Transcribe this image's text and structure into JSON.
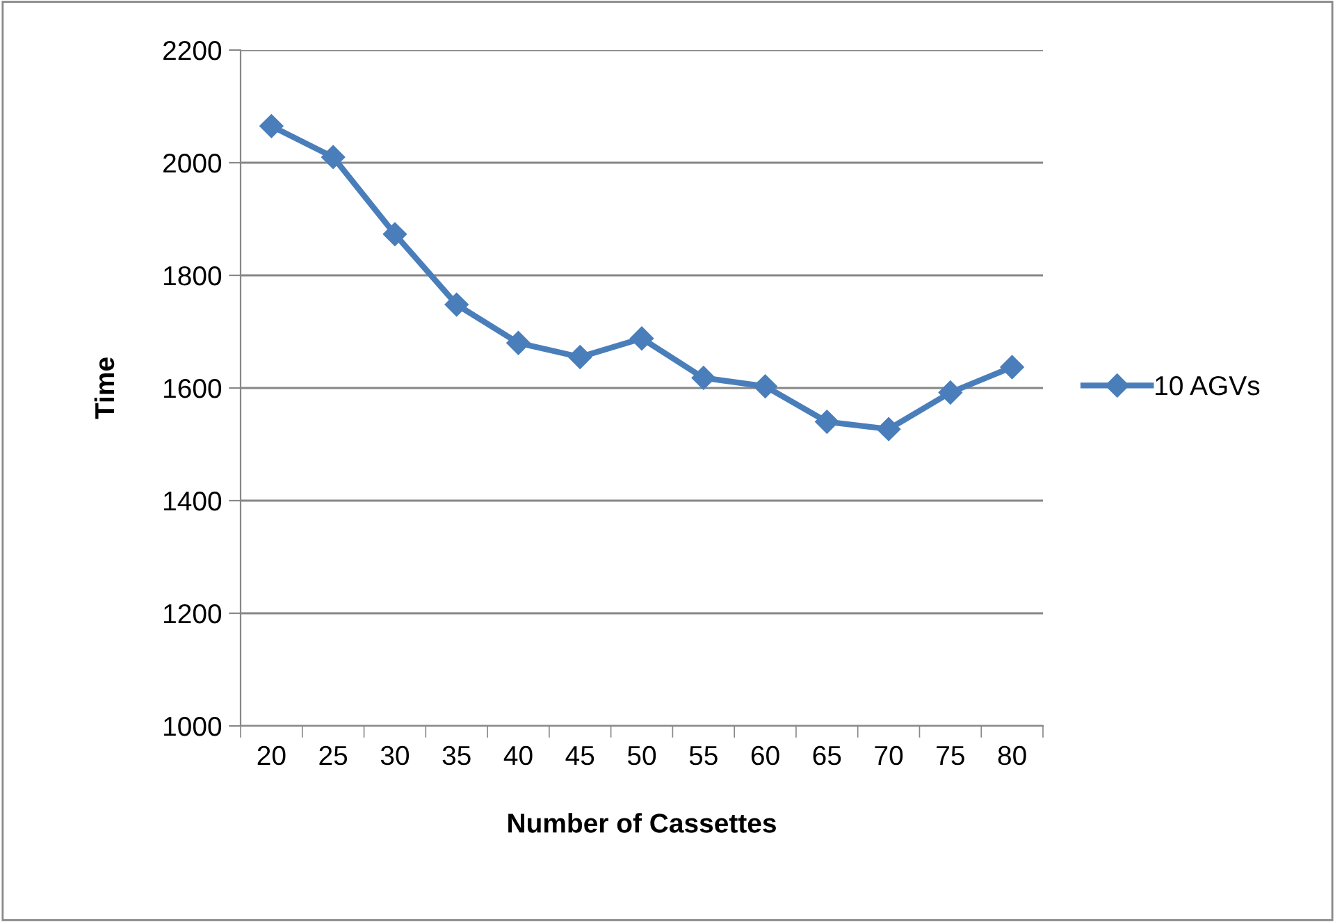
{
  "chart_data": {
    "type": "line",
    "xlabel": "Number of Cassettes",
    "ylabel": "Time",
    "categories": [
      "20",
      "25",
      "30",
      "35",
      "40",
      "45",
      "50",
      "55",
      "60",
      "65",
      "70",
      "75",
      "80"
    ],
    "series": [
      {
        "name": "10 AGVs",
        "color": "#4a7ebb",
        "values": [
          2065,
          2010,
          1873,
          1748,
          1680,
          1655,
          1688,
          1618,
          1603,
          1540,
          1527,
          1592,
          1637
        ]
      }
    ],
    "ylim": [
      1000,
      2200
    ],
    "yticks": [
      1000,
      1200,
      1400,
      1600,
      1800,
      2000,
      2200
    ],
    "grid": "y",
    "legend": "right",
    "marker": "diamond",
    "line_style": "solid"
  }
}
